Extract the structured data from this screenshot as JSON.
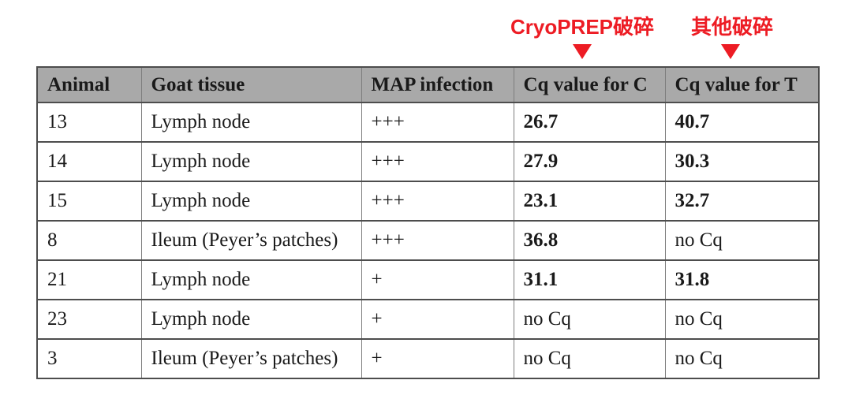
{
  "colors": {
    "annotation_red": "#ed1c24",
    "header_background": "#a9a9a9",
    "table_border": "#4d4d4d"
  },
  "annotations": [
    {
      "label": "CryoPREP破碎"
    },
    {
      "label": "其他破碎"
    }
  ],
  "table": {
    "headers": [
      "Animal",
      "Goat tissue",
      "MAP infection",
      "Cq value for C",
      "Cq value for T"
    ],
    "rows": [
      {
        "animal": "13",
        "goat_tissue": "Lymph node",
        "map_infection": "+++",
        "cq_c": {
          "text": "26.7",
          "bold": true
        },
        "cq_t": {
          "text": "40.7",
          "bold": true
        }
      },
      {
        "animal": "14",
        "goat_tissue": "Lymph node",
        "map_infection": "+++",
        "cq_c": {
          "text": "27.9",
          "bold": true
        },
        "cq_t": {
          "text": "30.3",
          "bold": true
        }
      },
      {
        "animal": "15",
        "goat_tissue": "Lymph node",
        "map_infection": "+++",
        "cq_c": {
          "text": "23.1",
          "bold": true
        },
        "cq_t": {
          "text": "32.7",
          "bold": true
        }
      },
      {
        "animal": "8",
        "goat_tissue": "Ileum (Peyer’s patches)",
        "map_infection": "+++",
        "cq_c": {
          "text": "36.8",
          "bold": true
        },
        "cq_t": {
          "text": "no Cq",
          "bold": false
        }
      },
      {
        "animal": "21",
        "goat_tissue": "Lymph node",
        "map_infection": "+",
        "cq_c": {
          "text": "31.1",
          "bold": true
        },
        "cq_t": {
          "text": "31.8",
          "bold": true
        }
      },
      {
        "animal": "23",
        "goat_tissue": "Lymph node",
        "map_infection": "+",
        "cq_c": {
          "text": "no Cq",
          "bold": false
        },
        "cq_t": {
          "text": "no Cq",
          "bold": false
        }
      },
      {
        "animal": "3",
        "goat_tissue": "Ileum (Peyer’s patches)",
        "map_infection": "+",
        "cq_c": {
          "text": "no Cq",
          "bold": false
        },
        "cq_t": {
          "text": "no Cq",
          "bold": false
        }
      }
    ]
  }
}
